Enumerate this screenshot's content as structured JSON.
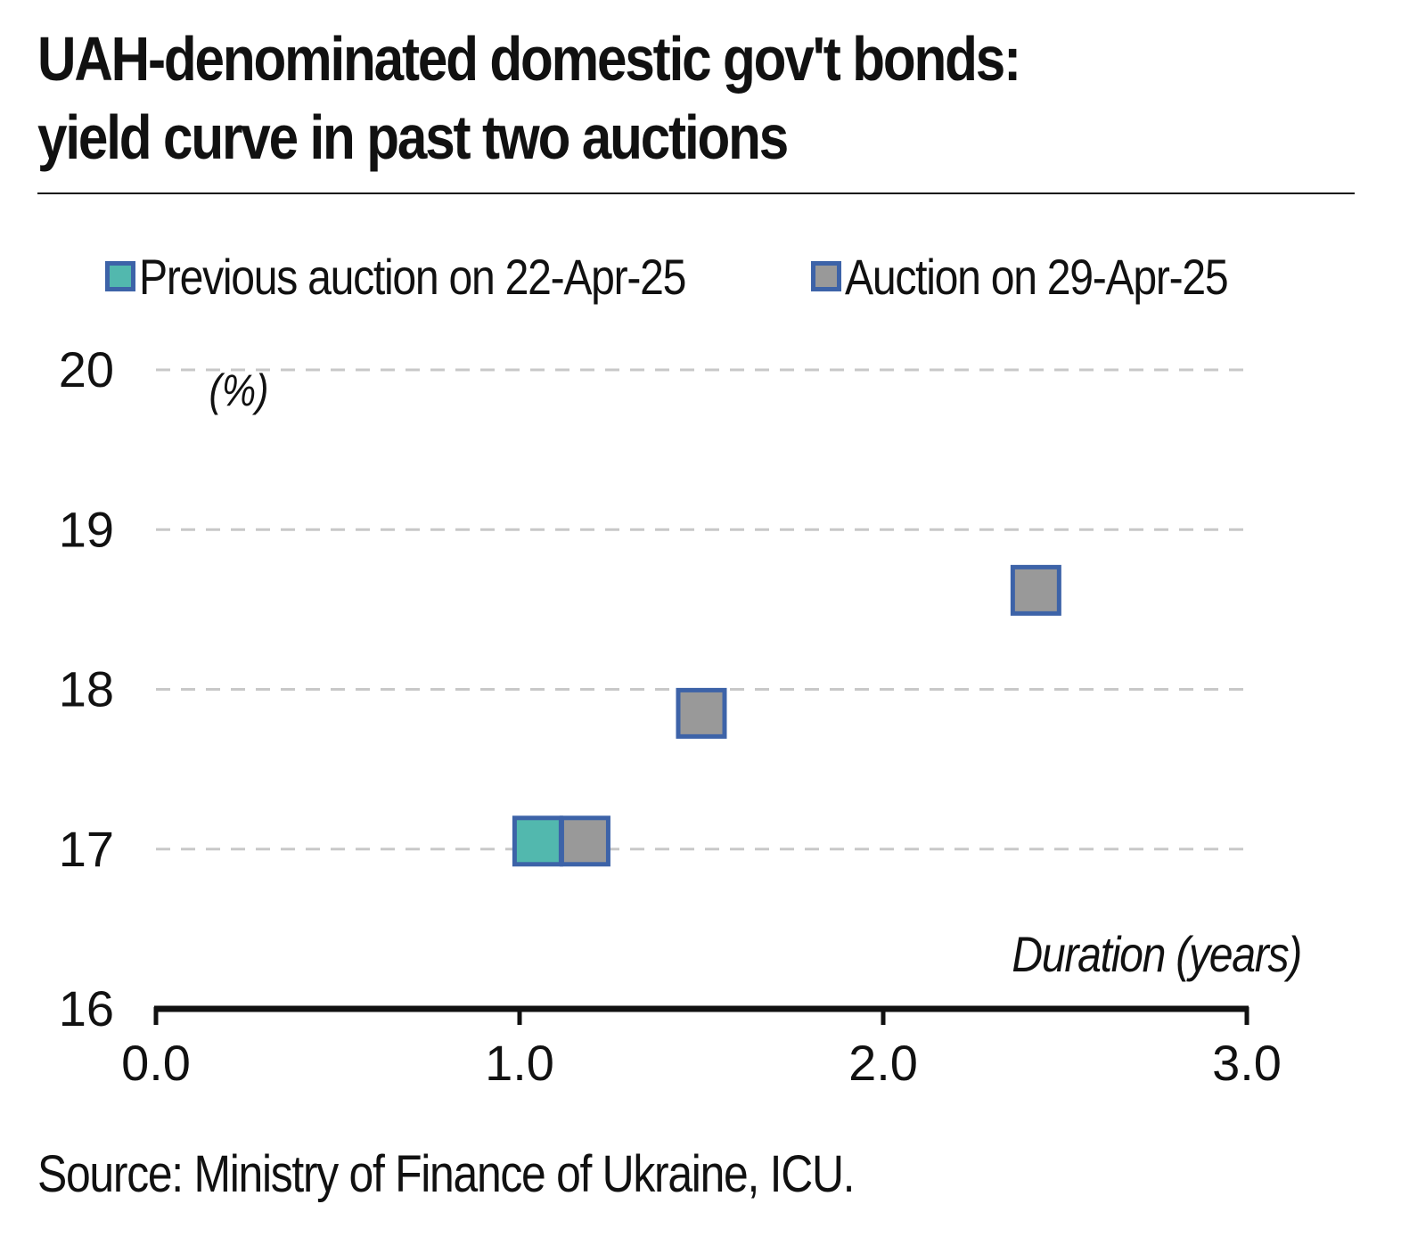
{
  "title_lines": [
    "UAH-denominated domestic gov't bonds:",
    "yield curve in past two auctions"
  ],
  "source": "Source: Ministry of Finance of Ukraine, ICU.",
  "colors": {
    "previous": "#52b8ae",
    "current": "#999999",
    "marker_border": "#3d63a8",
    "gridline": "#c8c8c8",
    "axis": "#111111"
  },
  "chart_data": {
    "type": "scatter",
    "title": "UAH-denominated domestic gov't bonds: yield curve in past two auctions",
    "xlabel": "Duration (years)",
    "ylabel": "(%)",
    "xlim": [
      0,
      3
    ],
    "ylim": [
      16,
      20
    ],
    "x_ticks": [
      "0.0",
      "1.0",
      "2.0",
      "3.0"
    ],
    "y_ticks": [
      "16",
      "17",
      "18",
      "19",
      "20"
    ],
    "grid": "horizontal dashed",
    "legend_position": "top",
    "series": [
      {
        "name": "Previous auction on 22-Apr-25",
        "color": "#52b8ae",
        "points": [
          {
            "x": 1.05,
            "y": 17.05
          }
        ]
      },
      {
        "name": "Auction on 29-Apr-25",
        "color": "#999999",
        "points": [
          {
            "x": 1.18,
            "y": 17.05
          },
          {
            "x": 1.5,
            "y": 17.85
          },
          {
            "x": 2.42,
            "y": 18.62
          }
        ]
      }
    ]
  }
}
